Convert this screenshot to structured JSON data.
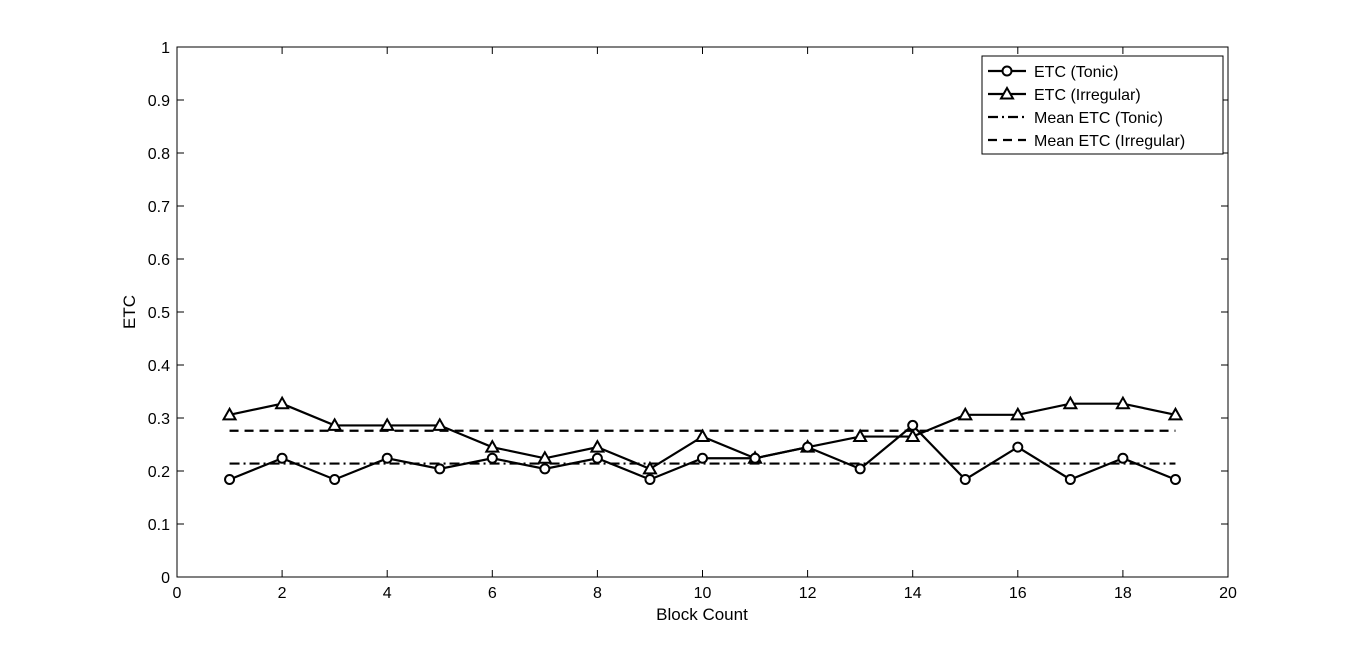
{
  "chart_data": {
    "type": "line",
    "title": "",
    "xlabel": "Block Count",
    "ylabel": "ETC",
    "xlim": [
      0,
      20
    ],
    "ylim": [
      0,
      1
    ],
    "xticks": [
      0,
      2,
      4,
      6,
      8,
      10,
      12,
      14,
      16,
      18,
      20
    ],
    "yticks": [
      0,
      0.1,
      0.2,
      0.3,
      0.4,
      0.5,
      0.6,
      0.7,
      0.8,
      0.9,
      1
    ],
    "x": [
      1,
      2,
      3,
      4,
      5,
      6,
      7,
      8,
      9,
      10,
      11,
      12,
      13,
      14,
      15,
      16,
      17,
      18,
      19
    ],
    "series": [
      {
        "name": "ETC (Tonic)",
        "marker": "circle",
        "line_style": "solid",
        "values": [
          0.184,
          0.224,
          0.184,
          0.224,
          0.204,
          0.224,
          0.204,
          0.224,
          0.184,
          0.224,
          0.224,
          0.245,
          0.204,
          0.286,
          0.184,
          0.245,
          0.184,
          0.224,
          0.184
        ]
      },
      {
        "name": "ETC (Irregular)",
        "marker": "triangle",
        "line_style": "solid",
        "values": [
          0.306,
          0.327,
          0.286,
          0.286,
          0.286,
          0.245,
          0.224,
          0.245,
          0.204,
          0.265,
          0.224,
          0.245,
          0.265,
          0.265,
          0.306,
          0.306,
          0.327,
          0.327,
          0.306
        ]
      },
      {
        "name": "Mean ETC (Tonic)",
        "marker": "none",
        "line_style": "dashdot",
        "values": [
          0.214,
          0.214,
          0.214,
          0.214,
          0.214,
          0.214,
          0.214,
          0.214,
          0.214,
          0.214,
          0.214,
          0.214,
          0.214,
          0.214,
          0.214,
          0.214,
          0.214,
          0.214,
          0.214
        ]
      },
      {
        "name": "Mean ETC (Irregular)",
        "marker": "none",
        "line_style": "dashed",
        "values": [
          0.276,
          0.276,
          0.276,
          0.276,
          0.276,
          0.276,
          0.276,
          0.276,
          0.276,
          0.276,
          0.276,
          0.276,
          0.276,
          0.276,
          0.276,
          0.276,
          0.276,
          0.276,
          0.276
        ]
      }
    ],
    "grid": false,
    "legend_position": "top-right",
    "colors": {
      "line": "#000000",
      "marker_fill": "#ffffff"
    }
  }
}
